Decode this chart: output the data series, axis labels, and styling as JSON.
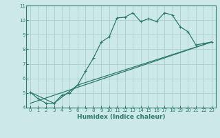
{
  "xlabel": "Humidex (Indice chaleur)",
  "ylabel": "",
  "xlim": [
    -0.5,
    23.5
  ],
  "ylim": [
    4,
    11
  ],
  "yticks": [
    4,
    5,
    6,
    7,
    8,
    9,
    10,
    11
  ],
  "xticks": [
    0,
    1,
    2,
    3,
    4,
    5,
    6,
    7,
    8,
    9,
    10,
    11,
    12,
    13,
    14,
    15,
    16,
    17,
    18,
    19,
    20,
    21,
    22,
    23
  ],
  "bg_color": "#cce8e8",
  "grid_color": "#aad0d0",
  "line_color": "#2d7a6e",
  "line1_x": [
    0,
    1,
    2,
    3,
    4,
    5,
    6,
    7,
    8,
    9,
    10,
    11,
    12,
    13,
    14,
    15,
    16,
    17,
    18,
    19,
    20,
    21,
    22,
    23
  ],
  "line1_y": [
    5.05,
    4.6,
    4.3,
    4.3,
    4.85,
    5.0,
    5.55,
    6.5,
    7.4,
    8.5,
    8.85,
    10.15,
    10.2,
    10.5,
    9.9,
    10.1,
    9.9,
    10.5,
    10.35,
    9.55,
    9.2,
    8.3,
    8.4,
    8.5
  ],
  "line2_x": [
    0,
    3,
    6,
    23
  ],
  "line2_y": [
    5.05,
    4.3,
    5.55,
    8.5
  ],
  "line3_x": [
    0,
    23
  ],
  "line3_y": [
    4.3,
    8.5
  ]
}
